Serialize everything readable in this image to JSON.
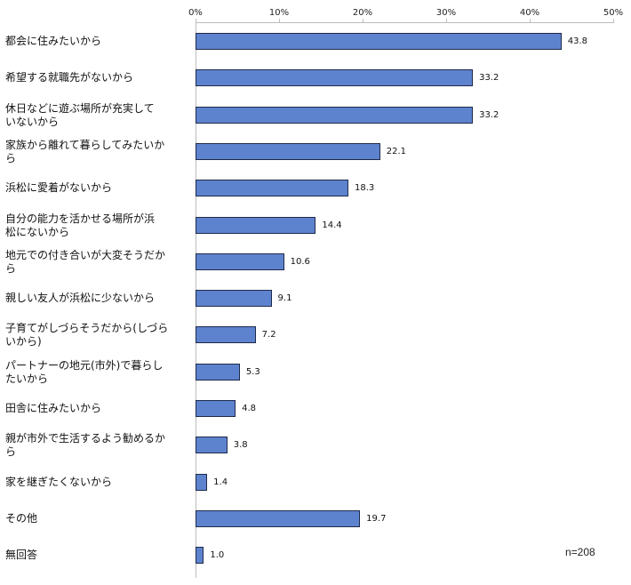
{
  "chart_data": {
    "type": "bar",
    "orientation": "horizontal",
    "title": "",
    "xlabel": "",
    "ylabel": "",
    "xlim": [
      0,
      50
    ],
    "x_ticks": [
      "0%",
      "10%",
      "20%",
      "30%",
      "40%",
      "50%"
    ],
    "grid": false,
    "legend": null,
    "categories": [
      "都会に住みたいから",
      "希望する就職先がないから",
      "休日などに遊ぶ場所が充実していないから",
      "家族から離れて暮らしてみたいから",
      "浜松に愛着がないから",
      "自分の能力を活かせる場所が浜松にないから",
      "地元での付き合いが大変そうだから",
      "親しい友人が浜松に少ないから",
      "子育てがしづらそうだから(しづらいから)",
      "パートナーの地元(市外)で暮らしたいから",
      "田舎に住みたいから",
      "親が市外で生活するよう勧めるから",
      "家を継ぎたくないから",
      "その他",
      "無回答"
    ],
    "category_display_lines": [
      [
        "都会に住みたいから"
      ],
      [
        "希望する就職先がないから"
      ],
      [
        "休日などに遊ぶ場所が充実して",
        "いないから"
      ],
      [
        "家族から離れて暮らしてみたいか",
        "ら"
      ],
      [
        "浜松に愛着がないから"
      ],
      [
        "自分の能力を活かせる場所が浜",
        "松にないから"
      ],
      [
        "地元での付き合いが大変そうだか",
        "ら"
      ],
      [
        "親しい友人が浜松に少ないから"
      ],
      [
        "子育てがしづらそうだから(しづら",
        "いから)"
      ],
      [
        "パートナーの地元(市外)で暮らし",
        "たいから"
      ],
      [
        "田舎に住みたいから"
      ],
      [
        "親が市外で生活するよう勧めるか",
        "ら"
      ],
      [
        "家を継ぎたくないから"
      ],
      [
        "その他"
      ],
      [
        "無回答"
      ]
    ],
    "values": [
      43.8,
      33.2,
      33.2,
      22.1,
      18.3,
      14.4,
      10.6,
      9.1,
      7.2,
      5.3,
      4.8,
      3.8,
      1.4,
      19.7,
      1.0
    ],
    "value_labels": [
      "43.8",
      "33.2",
      "33.2",
      "22.1",
      "18.3",
      "14.4",
      "10.6",
      "9.1",
      "7.2",
      "5.3",
      "4.8",
      "3.8",
      "1.4",
      "19.7",
      "1.0"
    ],
    "annotation": "n=208",
    "bar_color": "#4f77c7",
    "bar_border_color": "#1e2a4a"
  }
}
